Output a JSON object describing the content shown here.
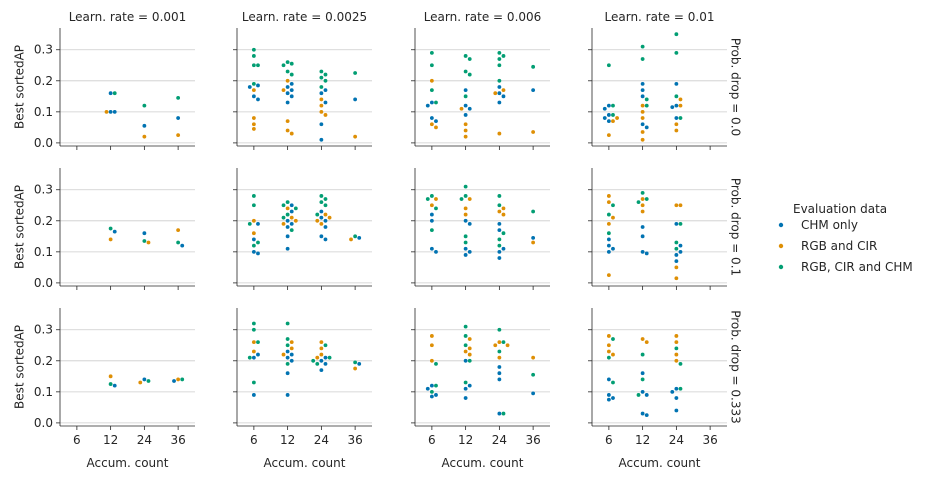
{
  "chart_data": {
    "type": "scatter",
    "subtype": "swarm",
    "col_var_titles": [
      "Learn. rate = 0.001",
      "Learn. rate = 0.0025",
      "Learn. rate = 0.006",
      "Learn. rate = 0.01"
    ],
    "row_var_titles": [
      "Prob. drop = 0.0",
      "Prob. drop = 0.1",
      "Prob. drop = 0.333"
    ],
    "xlabel": "Accum. count",
    "ylabel": "Best sortedAP",
    "categories": [
      "6",
      "12",
      "24",
      "36"
    ],
    "ylim": [
      -0.01,
      0.37
    ],
    "yticks": [
      0.0,
      0.1,
      0.2,
      0.3
    ],
    "ytick_labels": [
      "0.0",
      "0.1",
      "0.2",
      "0.3"
    ],
    "grid": "horizontal",
    "legend": {
      "title": "Evaluation data",
      "placement": "right",
      "entries": [
        "CHM only",
        "RGB and CIR",
        "RGB, CIR and CHM"
      ]
    },
    "series_colors": [
      "#0173b2",
      "#de8f05",
      "#029e73"
    ],
    "panels": [
      {
        "row": 0,
        "col": 0,
        "points": {
          "12": [
            [
              0.1,
              0.16,
              0.1
            ],
            [
              0.1
            ],
            [
              0.16
            ]
          ],
          "24": [
            [
              0.055
            ],
            [
              0.02
            ],
            [
              0.12
            ]
          ],
          "36": [
            [
              0.08
            ],
            [
              0.025
            ],
            [
              0.145
            ]
          ]
        }
      },
      {
        "row": 0,
        "col": 1,
        "points": {
          "6": [
            [
              0.185,
              0.18,
              0.14,
              0.15
            ],
            [
              0.17,
              0.08,
              0.06,
              0.045
            ],
            [
              0.3,
              0.28,
              0.25,
              0.25,
              0.19
            ]
          ],
          "12": [
            [
              0.19,
              0.18,
              0.17,
              0.16,
              0.15,
              0.13
            ],
            [
              0.2,
              0.17,
              0.07,
              0.04,
              0.03
            ],
            [
              0.26,
              0.255,
              0.25,
              0.23,
              0.22
            ]
          ],
          "24": [
            [
              0.17,
              0.16,
              0.13,
              0.06,
              0.01
            ],
            [
              0.14,
              0.12,
              0.1,
              0.09
            ],
            [
              0.23,
              0.22,
              0.21,
              0.2,
              0.18
            ]
          ],
          "36": [
            [
              0.14
            ],
            [
              0.02
            ],
            [
              0.225
            ]
          ]
        }
      },
      {
        "row": 0,
        "col": 2,
        "points": {
          "6": [
            [
              0.13,
              0.12,
              0.08,
              0.07
            ],
            [
              0.2,
              0.06,
              0.05
            ],
            [
              0.29,
              0.25,
              0.17,
              0.13
            ]
          ],
          "12": [
            [
              0.17,
              0.12,
              0.11,
              0.09
            ],
            [
              0.11,
              0.06,
              0.04,
              0.02
            ],
            [
              0.28,
              0.27,
              0.23,
              0.22,
              0.15
            ]
          ],
          "24": [
            [
              0.18,
              0.16,
              0.15,
              0.13
            ],
            [
              0.17,
              0.16,
              0.03
            ],
            [
              0.29,
              0.28,
              0.27,
              0.25,
              0.2
            ]
          ],
          "36": [
            [
              0.17
            ],
            [
              0.035
            ],
            [
              0.245
            ]
          ]
        }
      },
      {
        "row": 0,
        "col": 3,
        "points": {
          "6": [
            [
              0.12,
              0.11,
              0.09,
              0.08,
              0.07
            ],
            [
              0.08,
              0.07,
              0.025
            ],
            [
              0.25,
              0.12,
              0.09
            ]
          ],
          "12": [
            [
              0.19,
              0.17,
              0.15,
              0.06,
              0.05
            ],
            [
              0.12,
              0.1,
              0.08,
              0.035,
              0.01
            ],
            [
              0.31,
              0.27,
              0.14,
              0.12
            ]
          ],
          "24": [
            [
              0.19,
              0.12,
              0.115,
              0.08
            ],
            [
              0.14,
              0.12,
              0.06,
              0.04
            ],
            [
              0.35,
              0.29,
              0.15,
              0.08
            ]
          ]
        }
      },
      {
        "row": 1,
        "col": 0,
        "points": {
          "12": [
            [
              0.165
            ],
            [
              0.14
            ],
            [
              0.175
            ]
          ],
          "24": [
            [
              0.16
            ],
            [
              0.13
            ],
            [
              0.135
            ]
          ],
          "36": [
            [
              0.12
            ],
            [
              0.17
            ],
            [
              0.13
            ]
          ]
        }
      },
      {
        "row": 1,
        "col": 1,
        "points": {
          "6": [
            [
              0.19,
              0.14,
              0.1,
              0.095
            ],
            [
              0.2,
              0.16
            ],
            [
              0.28,
              0.25,
              0.19,
              0.13,
              0.12
            ]
          ],
          "12": [
            [
              0.25,
              0.23,
              0.2,
              0.19,
              0.18,
              0.15,
              0.11
            ],
            [
              0.24,
              0.21,
              0.2,
              0.19
            ],
            [
              0.26,
              0.25,
              0.24,
              0.22,
              0.21,
              0.17
            ]
          ],
          "24": [
            [
              0.23,
              0.21,
              0.2,
              0.18,
              0.15,
              0.14
            ],
            [
              0.22,
              0.21,
              0.2,
              0.19
            ],
            [
              0.28,
              0.27,
              0.26,
              0.25,
              0.22
            ]
          ],
          "36": [
            [
              0.145
            ],
            [
              0.14
            ],
            [
              0.15
            ]
          ]
        }
      },
      {
        "row": 1,
        "col": 2,
        "points": {
          "6": [
            [
              0.22,
              0.2,
              0.11,
              0.1
            ],
            [
              0.27,
              0.25
            ],
            [
              0.28,
              0.27,
              0.24,
              0.17
            ]
          ],
          "12": [
            [
              0.2,
              0.19,
              0.11,
              0.1,
              0.09
            ],
            [
              0.27,
              0.24,
              0.22
            ],
            [
              0.31,
              0.28,
              0.27,
              0.15,
              0.13
            ]
          ],
          "24": [
            [
              0.19,
              0.17,
              0.11,
              0.1,
              0.08
            ],
            [
              0.24,
              0.23,
              0.22
            ],
            [
              0.28,
              0.25,
              0.16,
              0.14,
              0.12
            ]
          ],
          "36": [
            [
              0.145
            ],
            [
              0.13
            ],
            [
              0.23
            ]
          ]
        }
      },
      {
        "row": 1,
        "col": 3,
        "points": {
          "6": [
            [
              0.14,
              0.12,
              0.11,
              0.1
            ],
            [
              0.28,
              0.26,
              0.21,
              0.19,
              0.025
            ],
            [
              0.25,
              0.22,
              0.16
            ]
          ],
          "12": [
            [
              0.18,
              0.15,
              0.1,
              0.095
            ],
            [
              0.27,
              0.25,
              0.23
            ],
            [
              0.29,
              0.27,
              0.26
            ]
          ],
          "24": [
            [
              0.19,
              0.12,
              0.1,
              0.09,
              0.07
            ],
            [
              0.25,
              0.25,
              0.05,
              0.015
            ],
            [
              0.19,
              0.13,
              0.11
            ]
          ]
        }
      },
      {
        "row": 2,
        "col": 0,
        "points": {
          "12": [
            [
              0.12
            ],
            [
              0.15
            ],
            [
              0.125
            ]
          ],
          "24": [
            [
              0.14
            ],
            [
              0.13
            ],
            [
              0.135
            ]
          ],
          "36": [
            [
              0.135
            ],
            [
              0.14
            ],
            [
              0.14
            ]
          ]
        }
      },
      {
        "row": 2,
        "col": 1,
        "points": {
          "6": [
            [
              0.22,
              0.21,
              0.09
            ],
            [
              0.26,
              0.23
            ],
            [
              0.32,
              0.3,
              0.26,
              0.21,
              0.13
            ]
          ],
          "12": [
            [
              0.23,
              0.22,
              0.21,
              0.2,
              0.16,
              0.09
            ],
            [
              0.26,
              0.24,
              0.22
            ],
            [
              0.32,
              0.27,
              0.25,
              0.19
            ]
          ],
          "24": [
            [
              0.21,
              0.2,
              0.19,
              0.17
            ],
            [
              0.26,
              0.24,
              0.22,
              0.21
            ],
            [
              0.25,
              0.21,
              0.2,
              0.19
            ]
          ],
          "36": [
            [
              0.19
            ],
            [
              0.175
            ],
            [
              0.195
            ]
          ]
        }
      },
      {
        "row": 2,
        "col": 2,
        "points": {
          "6": [
            [
              0.12,
              0.11,
              0.09,
              0.085
            ],
            [
              0.28,
              0.25,
              0.2
            ],
            [
              0.19,
              0.12,
              0.1
            ]
          ],
          "12": [
            [
              0.2,
              0.12,
              0.11,
              0.08
            ],
            [
              0.27,
              0.24,
              0.23,
              0.22
            ],
            [
              0.31,
              0.28,
              0.25,
              0.2,
              0.13
            ]
          ],
          "24": [
            [
              0.18,
              0.16,
              0.14,
              0.03
            ],
            [
              0.26,
              0.25,
              0.25,
              0.21
            ],
            [
              0.3,
              0.26,
              0.23,
              0.03
            ]
          ],
          "36": [
            [
              0.095
            ],
            [
              0.21
            ],
            [
              0.155
            ]
          ]
        }
      },
      {
        "row": 2,
        "col": 3,
        "points": {
          "6": [
            [
              0.14,
              0.09,
              0.08,
              0.075
            ],
            [
              0.28,
              0.25,
              0.23,
              0.22
            ],
            [
              0.27,
              0.21,
              0.13
            ]
          ],
          "12": [
            [
              0.16,
              0.1,
              0.09,
              0.03,
              0.025
            ],
            [
              0.27,
              0.26
            ],
            [
              0.22,
              0.14,
              0.09
            ]
          ],
          "24": [
            [
              0.11,
              0.1,
              0.08,
              0.04
            ],
            [
              0.28,
              0.26,
              0.22,
              0.2
            ],
            [
              0.24,
              0.19,
              0.11
            ]
          ]
        }
      }
    ]
  }
}
